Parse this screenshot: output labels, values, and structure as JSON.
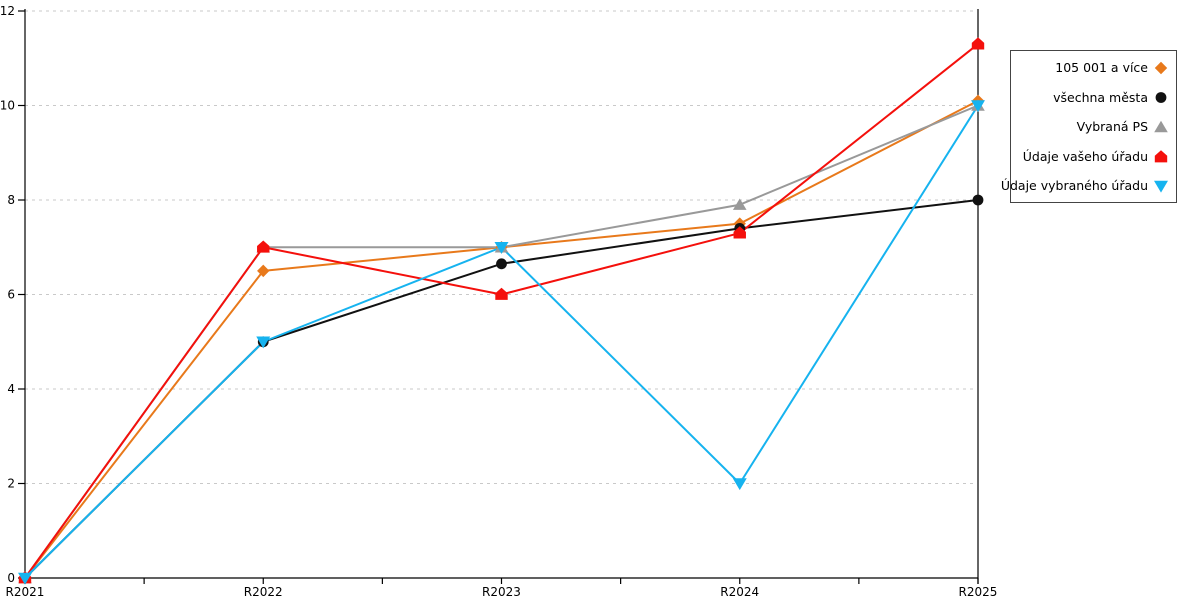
{
  "chart_data": {
    "type": "line",
    "title": "",
    "xlabel": "",
    "ylabel": "",
    "categories": [
      "R2021",
      "R2022",
      "R2023",
      "R2024",
      "R2025"
    ],
    "series": [
      {
        "name": "105 001 a více",
        "color": "#E8791B",
        "marker": "diamond",
        "values": [
          0,
          6.5,
          7,
          7.5,
          10.1
        ]
      },
      {
        "name": "všechna města",
        "color": "#111111",
        "marker": "circle",
        "values": [
          0,
          5,
          6.65,
          7.4,
          8
        ]
      },
      {
        "name": "Vybraná PS",
        "color": "#999999",
        "marker": "triangle-up",
        "values": [
          0,
          7,
          7,
          7.9,
          10
        ]
      },
      {
        "name": "Údaje vašeho úřadu",
        "color": "#F4100C",
        "marker": "pentagon",
        "values": [
          0,
          7,
          6,
          7.3,
          11.3
        ]
      },
      {
        "name": "Údaje vybraného úřadu",
        "color": "#16B3EF",
        "marker": "triangle-down",
        "values": [
          0,
          5,
          7,
          2,
          10
        ]
      }
    ],
    "ylim": [
      0,
      12
    ],
    "yticks": [
      0,
      2,
      4,
      6,
      8,
      10,
      12
    ],
    "x_minor_ticks": true,
    "grid": "horizontal dashed",
    "grid_color": "#C9C9C9",
    "axis_color": "#000000",
    "legend_position": "right"
  }
}
